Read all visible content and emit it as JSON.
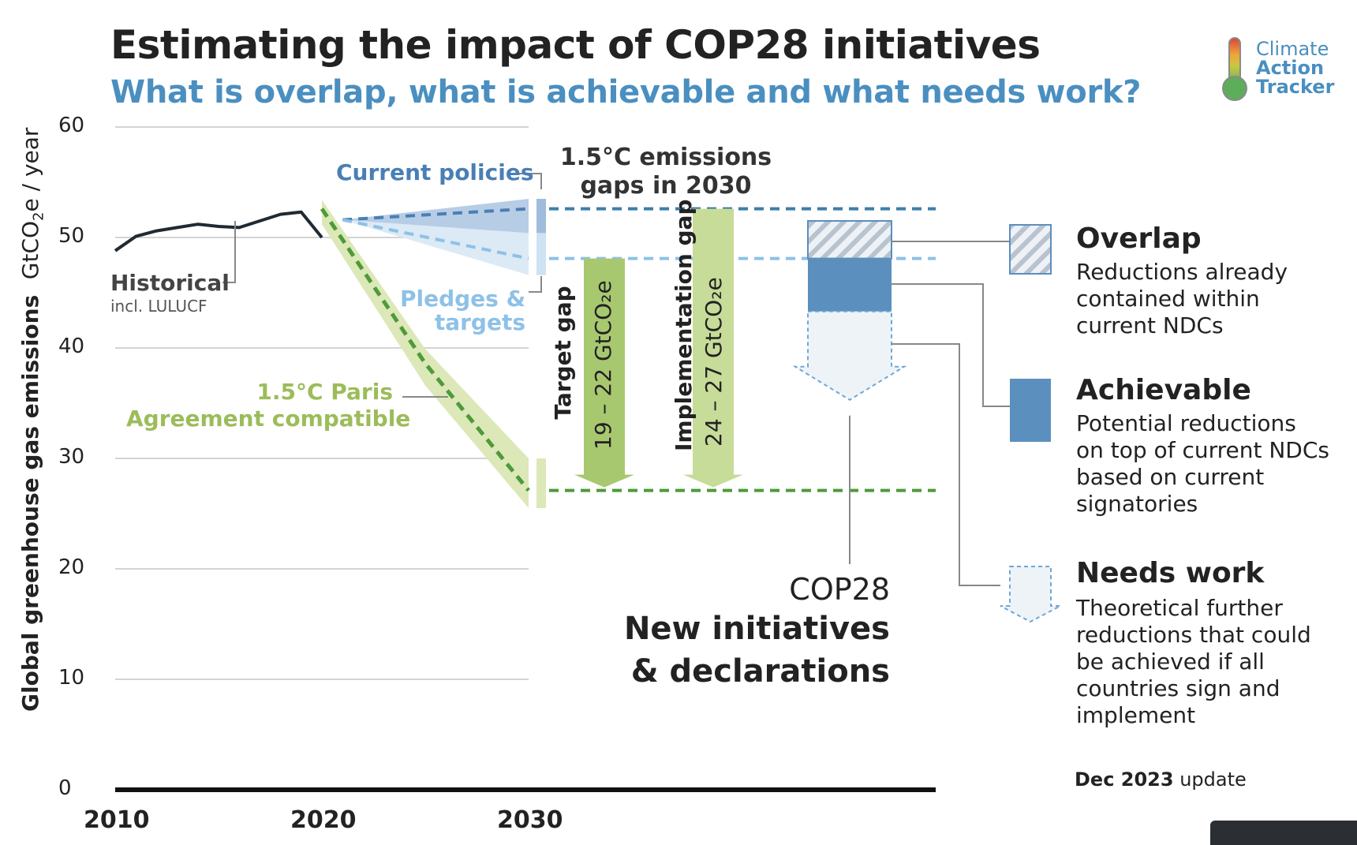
{
  "title": "Estimating the impact of COP28 initiatives",
  "subtitle": "What is overlap, what is achievable and what needs work?",
  "logo": {
    "line1": "Climate",
    "line2": "Action",
    "line3": "Tracker",
    "icon": "thermometer-icon"
  },
  "colors": {
    "historical": "#1f2a33",
    "current_policies": "#4a7fb5",
    "pledges": "#8ec1e6",
    "paris": "#4e9a3a",
    "paris_band": "#dce8b8",
    "target_gap": "#a8c870",
    "implementation_gap": "#c6dc98",
    "overlap": "#c7cfd9",
    "achievable": "#5a8fbe",
    "needs_work": "#eef3f8",
    "accent_blue": "#4a8fc0",
    "accent_green": "#9cbc5a"
  },
  "chart_data": {
    "type": "line",
    "title": "Estimating the impact of COP28 initiatives",
    "subtitle": "What is overlap, what is achievable and what needs work?",
    "ylabel": "Global greenhouse gas emissions",
    "yunit_prefix": "GtCO",
    "yunit_sub": "2",
    "yunit_suffix": "e / year",
    "ylim": [
      0,
      60
    ],
    "xlim": [
      2010,
      2030
    ],
    "y_ticks": [
      "0",
      "10",
      "20",
      "30",
      "40",
      "50",
      "60"
    ],
    "x_ticks": [
      "2010",
      "2020",
      "2030"
    ],
    "grid": true,
    "series": [
      {
        "name": "Historical",
        "sublabel": "incl. LULUCF",
        "x": [
          2010,
          2011,
          2012,
          2013,
          2014,
          2015,
          2016,
          2017,
          2018,
          2019,
          2020
        ],
        "y": [
          48.8,
          50.1,
          50.6,
          50.9,
          51.2,
          51.0,
          50.9,
          51.5,
          52.1,
          52.3,
          50.0
        ]
      },
      {
        "name": "Current policies",
        "x": [
          2021,
          2030
        ],
        "y": [
          51.6,
          52.6
        ],
        "range": {
          "low": [
            51.6,
            50.4
          ],
          "high": [
            51.6,
            53.5
          ]
        }
      },
      {
        "name": "Pledges & targets",
        "x": [
          2021,
          2030
        ],
        "y": [
          51.6,
          48.1
        ],
        "range": {
          "low": [
            51.6,
            46.6
          ],
          "high": [
            51.6,
            50.4
          ]
        }
      },
      {
        "name": "1.5°C Paris Agreement compatible",
        "x": [
          2020,
          2025,
          2030
        ],
        "y": [
          52.6,
          38.6,
          27.1
        ],
        "range": {
          "low": [
            51.2,
            36.6,
            25.5
          ],
          "high": [
            53.4,
            39.9,
            30.0
          ]
        }
      }
    ],
    "reference_lines": [
      {
        "name": "Current policies 2030",
        "y": 52.6
      },
      {
        "name": "Pledges & targets 2030",
        "y": 48.1
      },
      {
        "name": "1.5°C 2030",
        "y": 27.1
      }
    ],
    "gaps": {
      "title_line1": "1.5°C emissions",
      "title_line2": "gaps in 2030",
      "target_gap": {
        "label": "Target gap",
        "range_label": "19 – 22 GtCO₂e",
        "from": 48.1,
        "to": 27.1
      },
      "implementation_gap": {
        "label": "Implementation gap",
        "range_label": "24 – 27 GtCO₂e",
        "from": 52.6,
        "to": 27.1
      }
    },
    "cop28_bar": {
      "label_line1": "COP28",
      "label_line2": "New initiatives",
      "label_line3": "& declarations",
      "overlap": [
        48.1,
        51.5
      ],
      "achievable": [
        43.3,
        48.1
      ],
      "needs_work": [
        35.3,
        43.3
      ]
    }
  },
  "labels": {
    "historical": "Historical",
    "historical_sub": "incl. LULUCF",
    "current_policies": "Current policies",
    "pledges_line1": "Pledges &",
    "pledges_line2": "targets",
    "paris_line1": "1.5°C Paris",
    "paris_line2": "Agreement compatible"
  },
  "legend": [
    {
      "title": "Overlap",
      "lines": [
        "Reductions already",
        "contained within",
        "current NDCs"
      ]
    },
    {
      "title": "Achievable",
      "lines": [
        "Potential reductions",
        "on top of current NDCs",
        "based on current",
        "signatories"
      ]
    },
    {
      "title": "Needs work",
      "lines": [
        "Theoretical further",
        "reductions that could",
        "be achieved if all",
        "countries sign and",
        "implement"
      ]
    }
  ],
  "footer": {
    "bold": "Dec 2023",
    "text": " update"
  }
}
